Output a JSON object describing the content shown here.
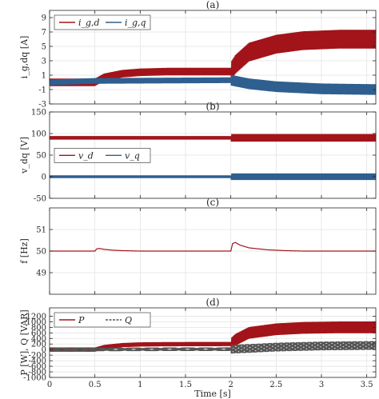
{
  "chart_data": [
    {
      "type": "line",
      "panel_label": "(a)",
      "ylabel": "i_g,dq [A]",
      "xlim": [
        0,
        3.6
      ],
      "ylim": [
        -3,
        10
      ],
      "xticks": [
        "0",
        "0.5",
        "1",
        "1.5",
        "2",
        "2.5",
        "3",
        "3.5"
      ],
      "yticks": [
        -3,
        -1,
        1,
        3,
        5,
        7,
        9
      ],
      "xtick_labels_shown": false,
      "grid": true,
      "legend": "top-left",
      "series": [
        {
          "name": "i_g,d",
          "color": "#a2141a",
          "x": [
            0,
            0.5,
            0.6,
            0.8,
            1.0,
            1.3,
            2.0,
            2.05,
            2.2,
            2.5,
            2.8,
            3.2,
            3.6
          ],
          "y": [
            0,
            0,
            0.7,
            1.2,
            1.4,
            1.5,
            1.5,
            2.5,
            4.2,
            5.3,
            5.8,
            6.0,
            6.0
          ]
        },
        {
          "name": "i_g,q",
          "color": "#2e5f8f",
          "x": [
            0,
            0.5,
            2.0,
            2.2,
            2.5,
            3.0,
            3.6
          ],
          "y": [
            0,
            0.2,
            0.3,
            -0.2,
            -0.6,
            -0.9,
            -1.0
          ]
        }
      ]
    },
    {
      "type": "line",
      "panel_label": "(b)",
      "ylabel": "v_dq [V]",
      "xlim": [
        0,
        3.6
      ],
      "ylim": [
        -50,
        150
      ],
      "xticks": [
        "0",
        "0.5",
        "1",
        "1.5",
        "2",
        "2.5",
        "3",
        "3.5"
      ],
      "yticks": [
        -50,
        0,
        50,
        100,
        150
      ],
      "xtick_labels_shown": false,
      "grid": true,
      "legend": "middle-left",
      "series": [
        {
          "name": "v_d",
          "color": "#a2141a",
          "x": [
            0,
            3.6
          ],
          "y": [
            90,
            90
          ]
        },
        {
          "name": "v_q",
          "color": "#2e5f8f",
          "x": [
            0,
            3.6
          ],
          "y": [
            0,
            0
          ]
        }
      ]
    },
    {
      "type": "line",
      "panel_label": "(c)",
      "ylabel": "f [Hz]",
      "xlim": [
        0,
        3.6
      ],
      "ylim": [
        48,
        52
      ],
      "xticks": [
        "0",
        "0.5",
        "1",
        "1.5",
        "2",
        "2.5",
        "3",
        "3.5"
      ],
      "yticks": [
        49,
        50,
        51
      ],
      "xtick_labels_shown": false,
      "grid": true,
      "legend": "none",
      "series": [
        {
          "name": "",
          "color": "#a2141a",
          "x": [
            0,
            0.5,
            0.52,
            0.55,
            0.6,
            0.7,
            0.8,
            1.0,
            2.0,
            2.02,
            2.05,
            2.1,
            2.2,
            2.4,
            2.6,
            2.8,
            3.6
          ],
          "y": [
            50,
            50,
            50.1,
            50.12,
            50.08,
            50.04,
            50.02,
            50.0,
            50.0,
            50.35,
            50.4,
            50.28,
            50.15,
            50.06,
            50.02,
            50.0,
            50.0
          ]
        }
      ]
    },
    {
      "type": "line",
      "panel_label": "(d)",
      "ylabel": "P [W], Q [VAR]",
      "xlabel": "Time [s]",
      "xlim": [
        0,
        3.6
      ],
      "ylim": [
        -1000,
        1500
      ],
      "xticks": [
        "0",
        "0.5",
        "1",
        "1.5",
        "2",
        "2.5",
        "3",
        "3.5"
      ],
      "yticks": [
        -1000,
        -800,
        -600,
        -400,
        -200,
        0,
        200,
        400,
        600,
        800,
        1000,
        1200
      ],
      "xtick_labels_shown": true,
      "grid": true,
      "legend": "top-left",
      "series": [
        {
          "name": "P",
          "color": "#a2141a",
          "x": [
            0,
            0.5,
            0.6,
            0.8,
            1.0,
            1.3,
            2.0,
            2.05,
            2.2,
            2.5,
            2.8,
            3.2,
            3.6
          ],
          "y": [
            0,
            0,
            90,
            160,
            185,
            195,
            200,
            350,
            600,
            730,
            780,
            800,
            800
          ]
        },
        {
          "name": "Q",
          "color": "#555555",
          "x": [
            0,
            0.5,
            1.0,
            2.0,
            2.2,
            2.5,
            3.0,
            3.6
          ],
          "y": [
            0,
            5,
            10,
            15,
            40,
            90,
            130,
            150
          ]
        }
      ]
    }
  ]
}
